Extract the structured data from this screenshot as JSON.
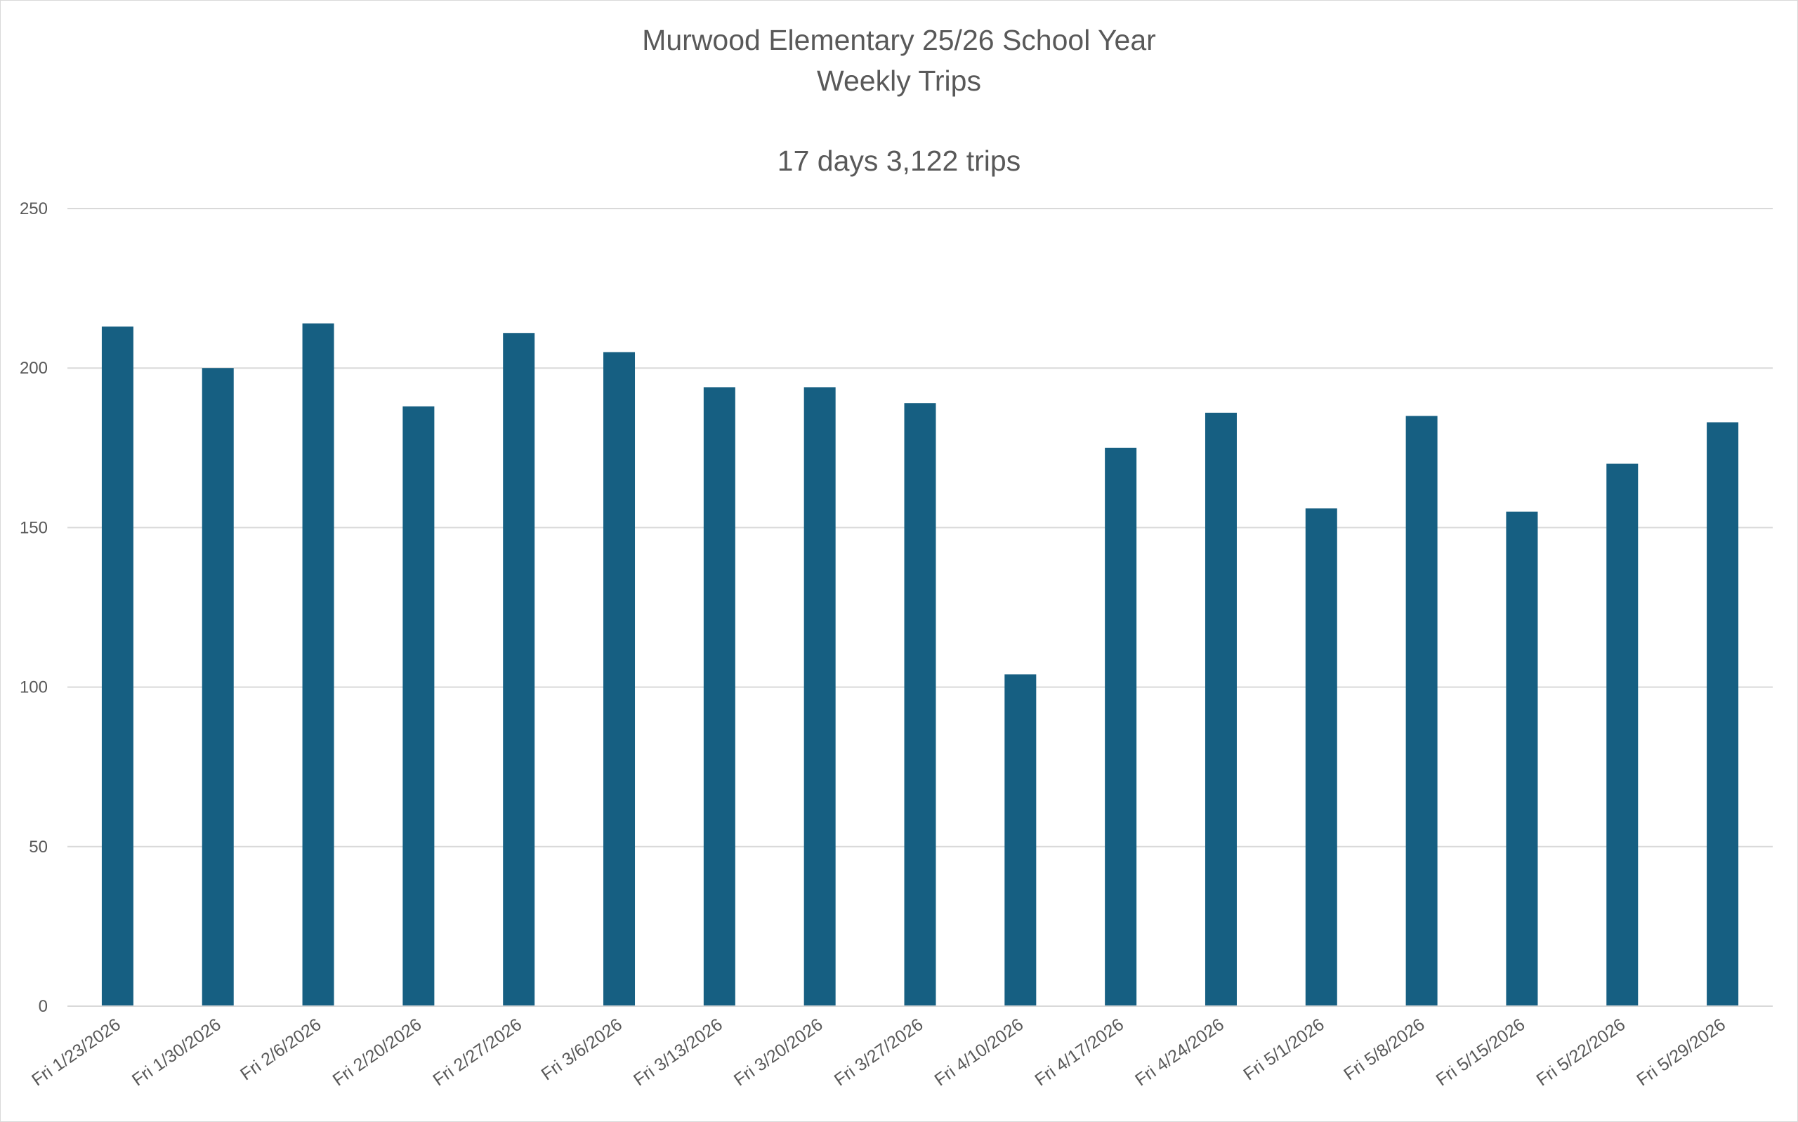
{
  "chart_data": {
    "type": "bar",
    "title": "Murwood Elementary 25/26 School Year",
    "title_line2": "Weekly Trips",
    "subtitle": "17 days 3,122 trips",
    "xlabel": "",
    "ylabel": "",
    "ylim": [
      0,
      250
    ],
    "yticks": [
      "0",
      "50",
      "100",
      "150",
      "200",
      "250"
    ],
    "grid": true,
    "legend": "none",
    "bar_color": "#165F82",
    "categories": [
      "Fri 1/23/2026",
      "Fri 1/30/2026",
      "Fri 2/6/2026",
      "Fri 2/20/2026",
      "Fri 2/27/2026",
      "Fri 3/6/2026",
      "Fri 3/13/2026",
      "Fri 3/20/2026",
      "Fri 3/27/2026",
      "Fri 4/10/2026",
      "Fri 4/17/2026",
      "Fri 4/24/2026",
      "Fri 5/1/2026",
      "Fri 5/8/2026",
      "Fri 5/15/2026",
      "Fri 5/22/2026",
      "Fri 5/29/2026"
    ],
    "values": [
      213,
      200,
      214,
      188,
      211,
      205,
      194,
      194,
      189,
      104,
      175,
      186,
      156,
      185,
      155,
      170,
      183
    ]
  }
}
